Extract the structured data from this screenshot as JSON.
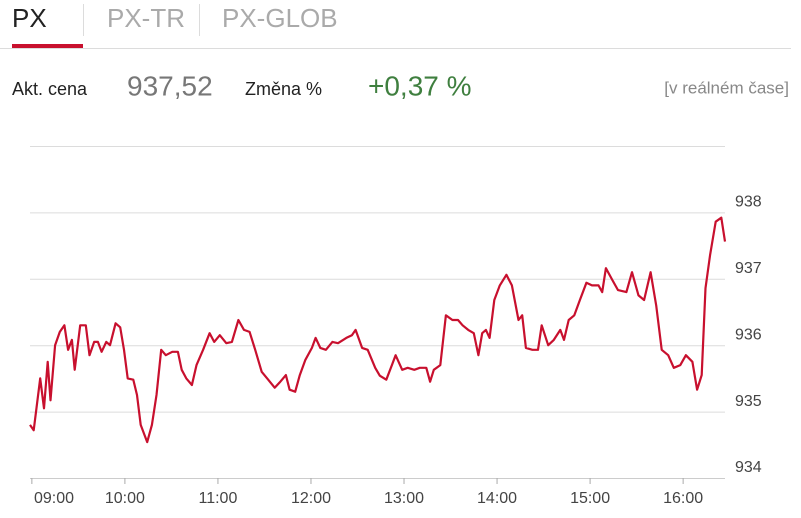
{
  "tabs": [
    "PX",
    "PX-TR",
    "PX-GLOB"
  ],
  "active_tab": 0,
  "quote": {
    "price_label": "Akt. cena",
    "price": "937,52",
    "change_label": "Změna %",
    "change": "+0,37 %",
    "realtime": "[v reálném čase]"
  },
  "chart_data": {
    "type": "line",
    "x": [
      8.98,
      9.02,
      9.09,
      9.13,
      9.17,
      9.2,
      9.25,
      9.3,
      9.35,
      9.39,
      9.43,
      9.46,
      9.52,
      9.58,
      9.62,
      9.67,
      9.71,
      9.75,
      9.8,
      9.84,
      9.9,
      9.95,
      9.99,
      10.03,
      10.09,
      10.13,
      10.17,
      10.24,
      10.29,
      10.34,
      10.39,
      10.44,
      10.51,
      10.57,
      10.61,
      10.66,
      10.72,
      10.77,
      10.84,
      10.91,
      10.96,
      11.02,
      11.09,
      11.15,
      11.22,
      11.28,
      11.34,
      11.4,
      11.47,
      11.54,
      11.61,
      11.67,
      11.73,
      11.77,
      11.83,
      11.88,
      11.94,
      12.01,
      12.05,
      12.1,
      12.16,
      12.23,
      12.29,
      12.38,
      12.44,
      12.48,
      12.55,
      12.61,
      12.69,
      12.74,
      12.81,
      12.87,
      12.91,
      12.98,
      13.04,
      13.11,
      13.17,
      13.24,
      13.28,
      13.32,
      13.39,
      13.45,
      13.52,
      13.58,
      13.63,
      13.69,
      13.75,
      13.8,
      13.84,
      13.88,
      13.92,
      13.97,
      14.03,
      14.1,
      14.16,
      14.23,
      14.27,
      14.31,
      14.38,
      14.44,
      14.48,
      14.55,
      14.61,
      14.68,
      14.72,
      14.77,
      14.83,
      14.89,
      14.96,
      15.02,
      15.09,
      15.13,
      15.17,
      15.24,
      15.3,
      15.39,
      15.45,
      15.52,
      15.58,
      15.65,
      15.71,
      15.77,
      15.84,
      15.9,
      15.97,
      16.03,
      16.1,
      16.15,
      16.2,
      16.24,
      16.29,
      16.35,
      16.41,
      16.45
    ],
    "series": [
      {
        "color": "#c8102e",
        "values": [
          934.8,
          934.72,
          935.5,
          935.05,
          935.75,
          935.17,
          936.0,
          936.2,
          936.3,
          935.93,
          936.08,
          935.63,
          936.3,
          936.3,
          935.85,
          936.05,
          936.05,
          935.9,
          936.05,
          936.0,
          936.33,
          936.27,
          935.93,
          935.5,
          935.48,
          935.25,
          934.8,
          934.54,
          934.8,
          935.25,
          935.93,
          935.85,
          935.9,
          935.9,
          935.63,
          935.5,
          935.4,
          935.7,
          935.93,
          936.18,
          936.05,
          936.15,
          936.03,
          936.05,
          936.38,
          936.23,
          936.2,
          935.93,
          935.6,
          935.48,
          935.36,
          935.45,
          935.55,
          935.33,
          935.3,
          935.55,
          935.78,
          935.96,
          936.11,
          935.96,
          935.93,
          936.05,
          936.03,
          936.11,
          936.15,
          936.23,
          935.96,
          935.93,
          935.66,
          935.54,
          935.48,
          935.7,
          935.85,
          935.63,
          935.66,
          935.63,
          935.66,
          935.66,
          935.45,
          935.63,
          935.7,
          936.45,
          936.38,
          936.38,
          936.3,
          936.23,
          936.18,
          935.85,
          936.18,
          936.23,
          936.11,
          936.68,
          936.9,
          937.06,
          936.9,
          936.38,
          936.45,
          935.96,
          935.93,
          935.93,
          936.3,
          936.0,
          936.08,
          936.23,
          936.08,
          936.38,
          936.45,
          936.68,
          936.94,
          936.9,
          936.9,
          936.8,
          937.16,
          936.98,
          936.83,
          936.8,
          937.1,
          936.75,
          936.68,
          937.1,
          936.6,
          935.93,
          935.85,
          935.66,
          935.7,
          935.85,
          935.75,
          935.33,
          935.55,
          936.86,
          937.36,
          937.86,
          937.92,
          937.56
        ]
      }
    ],
    "xlim": [
      8.98,
      16.45
    ],
    "xticks": [
      {
        "value": 9,
        "label": "09:00"
      },
      {
        "value": 10,
        "label": "10:00"
      },
      {
        "value": 11,
        "label": "11:00"
      },
      {
        "value": 12,
        "label": "12:00"
      },
      {
        "value": 13,
        "label": "13:00"
      },
      {
        "value": 14,
        "label": "14:00"
      },
      {
        "value": 15,
        "label": "15:00"
      },
      {
        "value": 16,
        "label": "16:00"
      }
    ],
    "ylim": [
      934,
      939
    ],
    "yticks": [
      934,
      935,
      936,
      937,
      938
    ],
    "grid": true
  }
}
